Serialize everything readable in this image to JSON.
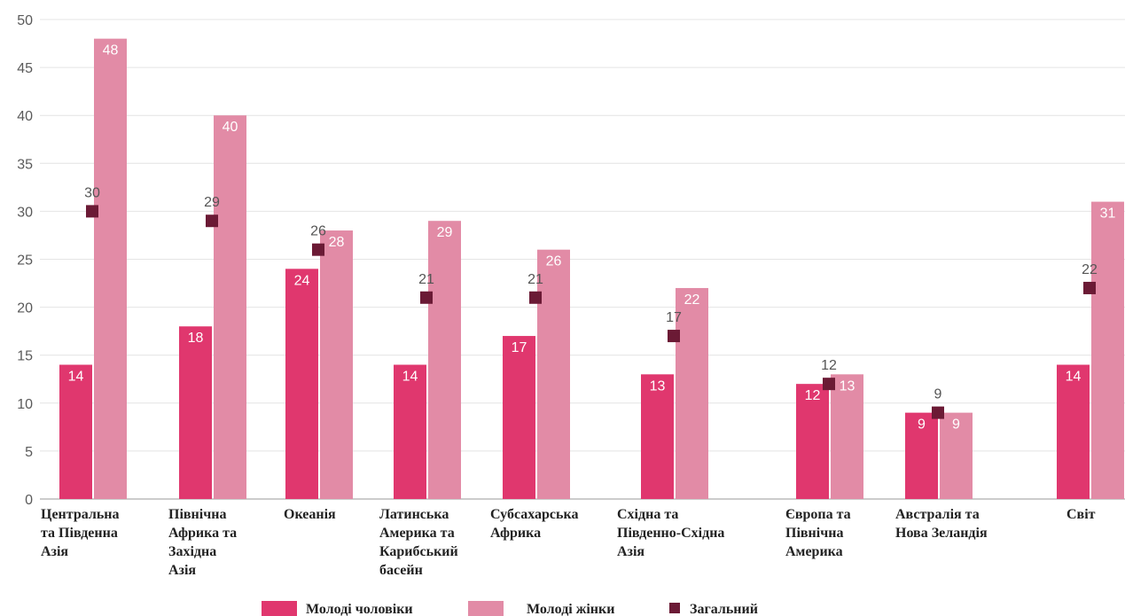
{
  "chart_data": {
    "type": "bar",
    "categories": [
      [
        "Центральна",
        "та Південна",
        "Азія"
      ],
      [
        "Північна",
        "Африка та",
        "Західна",
        "Азія"
      ],
      [
        "Океанія"
      ],
      [
        "Латинська",
        "Америка та",
        "Карибський",
        "басейн"
      ],
      [
        "Субсахарська",
        "Африка"
      ],
      [
        "Східна та",
        "Південно-Східна",
        "Азія"
      ],
      [
        "Європа та",
        "Північна",
        "Америка"
      ],
      [
        "Австралія та",
        "Нова  Зеландія"
      ],
      [
        "Світ"
      ]
    ],
    "series": [
      {
        "name": "Молоді чоловіки",
        "type": "bar",
        "color": "#e0376e",
        "values": [
          14,
          18,
          24,
          14,
          17,
          13,
          12,
          9,
          14
        ]
      },
      {
        "name": "Молоді жінки",
        "type": "bar",
        "color": "#e28ba6",
        "values": [
          48,
          40,
          28,
          29,
          26,
          22,
          13,
          9,
          31
        ]
      },
      {
        "name": "Загальний",
        "type": "marker",
        "color": "#6b1a35",
        "values": [
          30,
          29,
          26,
          21,
          21,
          17,
          12,
          9,
          22
        ]
      }
    ],
    "ylim": [
      0,
      50
    ],
    "yticks": [
      0,
      5,
      10,
      15,
      20,
      25,
      30,
      35,
      40,
      45,
      50
    ],
    "grid": true,
    "legend": "bottom"
  }
}
